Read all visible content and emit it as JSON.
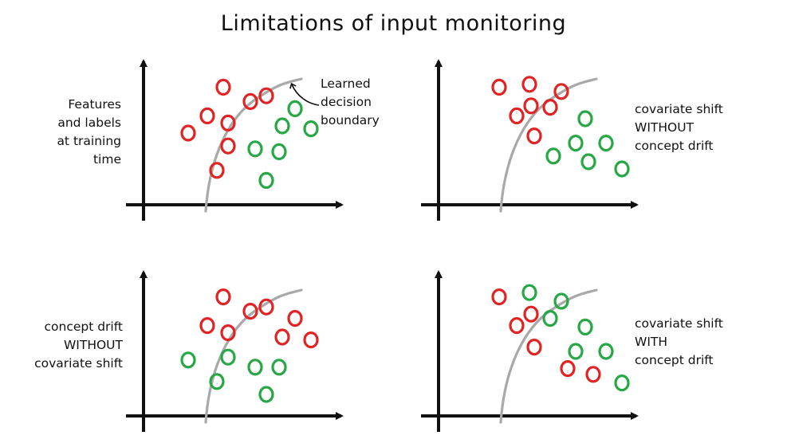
{
  "title": "Limitations of input monitoring",
  "boundary_annotation": [
    "Learned",
    "decision",
    "boundary"
  ],
  "colors": {
    "axis": "#111111",
    "boundary": "#a9a9a9",
    "class_a": "#e02424",
    "class_b": "#27a745"
  },
  "panels": [
    {
      "id": "tl",
      "caption": [
        "Features",
        "and labels",
        "at training",
        "time"
      ],
      "points": [
        {
          "x": 0.35,
          "y": 0.82,
          "cls": "a"
        },
        {
          "x": 0.52,
          "y": 0.72,
          "cls": "a"
        },
        {
          "x": 0.62,
          "y": 0.76,
          "cls": "a"
        },
        {
          "x": 0.25,
          "y": 0.62,
          "cls": "a"
        },
        {
          "x": 0.38,
          "y": 0.57,
          "cls": "a"
        },
        {
          "x": 0.38,
          "y": 0.41,
          "cls": "a"
        },
        {
          "x": 0.13,
          "y": 0.5,
          "cls": "a"
        },
        {
          "x": 0.31,
          "y": 0.24,
          "cls": "a"
        },
        {
          "x": 0.8,
          "y": 0.67,
          "cls": "b"
        },
        {
          "x": 0.72,
          "y": 0.55,
          "cls": "b"
        },
        {
          "x": 0.9,
          "y": 0.53,
          "cls": "b"
        },
        {
          "x": 0.55,
          "y": 0.39,
          "cls": "b"
        },
        {
          "x": 0.7,
          "y": 0.37,
          "cls": "b"
        },
        {
          "x": 0.62,
          "y": 0.17,
          "cls": "b"
        }
      ]
    },
    {
      "id": "tr",
      "caption": [
        "covariate shift",
        "WITHOUT",
        "concept drift"
      ],
      "points": [
        {
          "x": 0.23,
          "y": 0.82,
          "cls": "a"
        },
        {
          "x": 0.42,
          "y": 0.84,
          "cls": "a"
        },
        {
          "x": 0.62,
          "y": 0.79,
          "cls": "a"
        },
        {
          "x": 0.43,
          "y": 0.69,
          "cls": "a"
        },
        {
          "x": 0.55,
          "y": 0.68,
          "cls": "a"
        },
        {
          "x": 0.34,
          "y": 0.62,
          "cls": "a"
        },
        {
          "x": 0.45,
          "y": 0.48,
          "cls": "a"
        },
        {
          "x": 0.77,
          "y": 0.6,
          "cls": "b"
        },
        {
          "x": 0.71,
          "y": 0.43,
          "cls": "b"
        },
        {
          "x": 0.9,
          "y": 0.43,
          "cls": "b"
        },
        {
          "x": 0.57,
          "y": 0.34,
          "cls": "b"
        },
        {
          "x": 0.79,
          "y": 0.3,
          "cls": "b"
        },
        {
          "x": 1.0,
          "y": 0.25,
          "cls": "b"
        }
      ]
    },
    {
      "id": "bl",
      "caption": [
        "concept drift",
        "WITHOUT",
        "covariate shift"
      ],
      "points": [
        {
          "x": 0.35,
          "y": 0.83,
          "cls": "a"
        },
        {
          "x": 0.52,
          "y": 0.73,
          "cls": "a"
        },
        {
          "x": 0.62,
          "y": 0.76,
          "cls": "a"
        },
        {
          "x": 0.25,
          "y": 0.63,
          "cls": "a"
        },
        {
          "x": 0.38,
          "y": 0.58,
          "cls": "a"
        },
        {
          "x": 0.8,
          "y": 0.68,
          "cls": "a"
        },
        {
          "x": 0.72,
          "y": 0.55,
          "cls": "a"
        },
        {
          "x": 0.9,
          "y": 0.53,
          "cls": "a"
        },
        {
          "x": 0.38,
          "y": 0.41,
          "cls": "b"
        },
        {
          "x": 0.13,
          "y": 0.39,
          "cls": "b"
        },
        {
          "x": 0.31,
          "y": 0.24,
          "cls": "b"
        },
        {
          "x": 0.55,
          "y": 0.34,
          "cls": "b"
        },
        {
          "x": 0.7,
          "y": 0.34,
          "cls": "b"
        },
        {
          "x": 0.62,
          "y": 0.15,
          "cls": "b"
        }
      ]
    },
    {
      "id": "br",
      "caption": [
        "covariate shift",
        "WITH",
        "concept drift"
      ],
      "points": [
        {
          "x": 0.23,
          "y": 0.83,
          "cls": "a"
        },
        {
          "x": 0.43,
          "y": 0.71,
          "cls": "a"
        },
        {
          "x": 0.34,
          "y": 0.63,
          "cls": "a"
        },
        {
          "x": 0.45,
          "y": 0.48,
          "cls": "a"
        },
        {
          "x": 0.66,
          "y": 0.33,
          "cls": "a"
        },
        {
          "x": 0.82,
          "y": 0.29,
          "cls": "a"
        },
        {
          "x": 0.42,
          "y": 0.86,
          "cls": "b"
        },
        {
          "x": 0.62,
          "y": 0.8,
          "cls": "b"
        },
        {
          "x": 0.55,
          "y": 0.68,
          "cls": "b"
        },
        {
          "x": 0.77,
          "y": 0.62,
          "cls": "b"
        },
        {
          "x": 0.71,
          "y": 0.45,
          "cls": "b"
        },
        {
          "x": 0.9,
          "y": 0.45,
          "cls": "b"
        },
        {
          "x": 1.0,
          "y": 0.23,
          "cls": "b"
        }
      ]
    }
  ]
}
